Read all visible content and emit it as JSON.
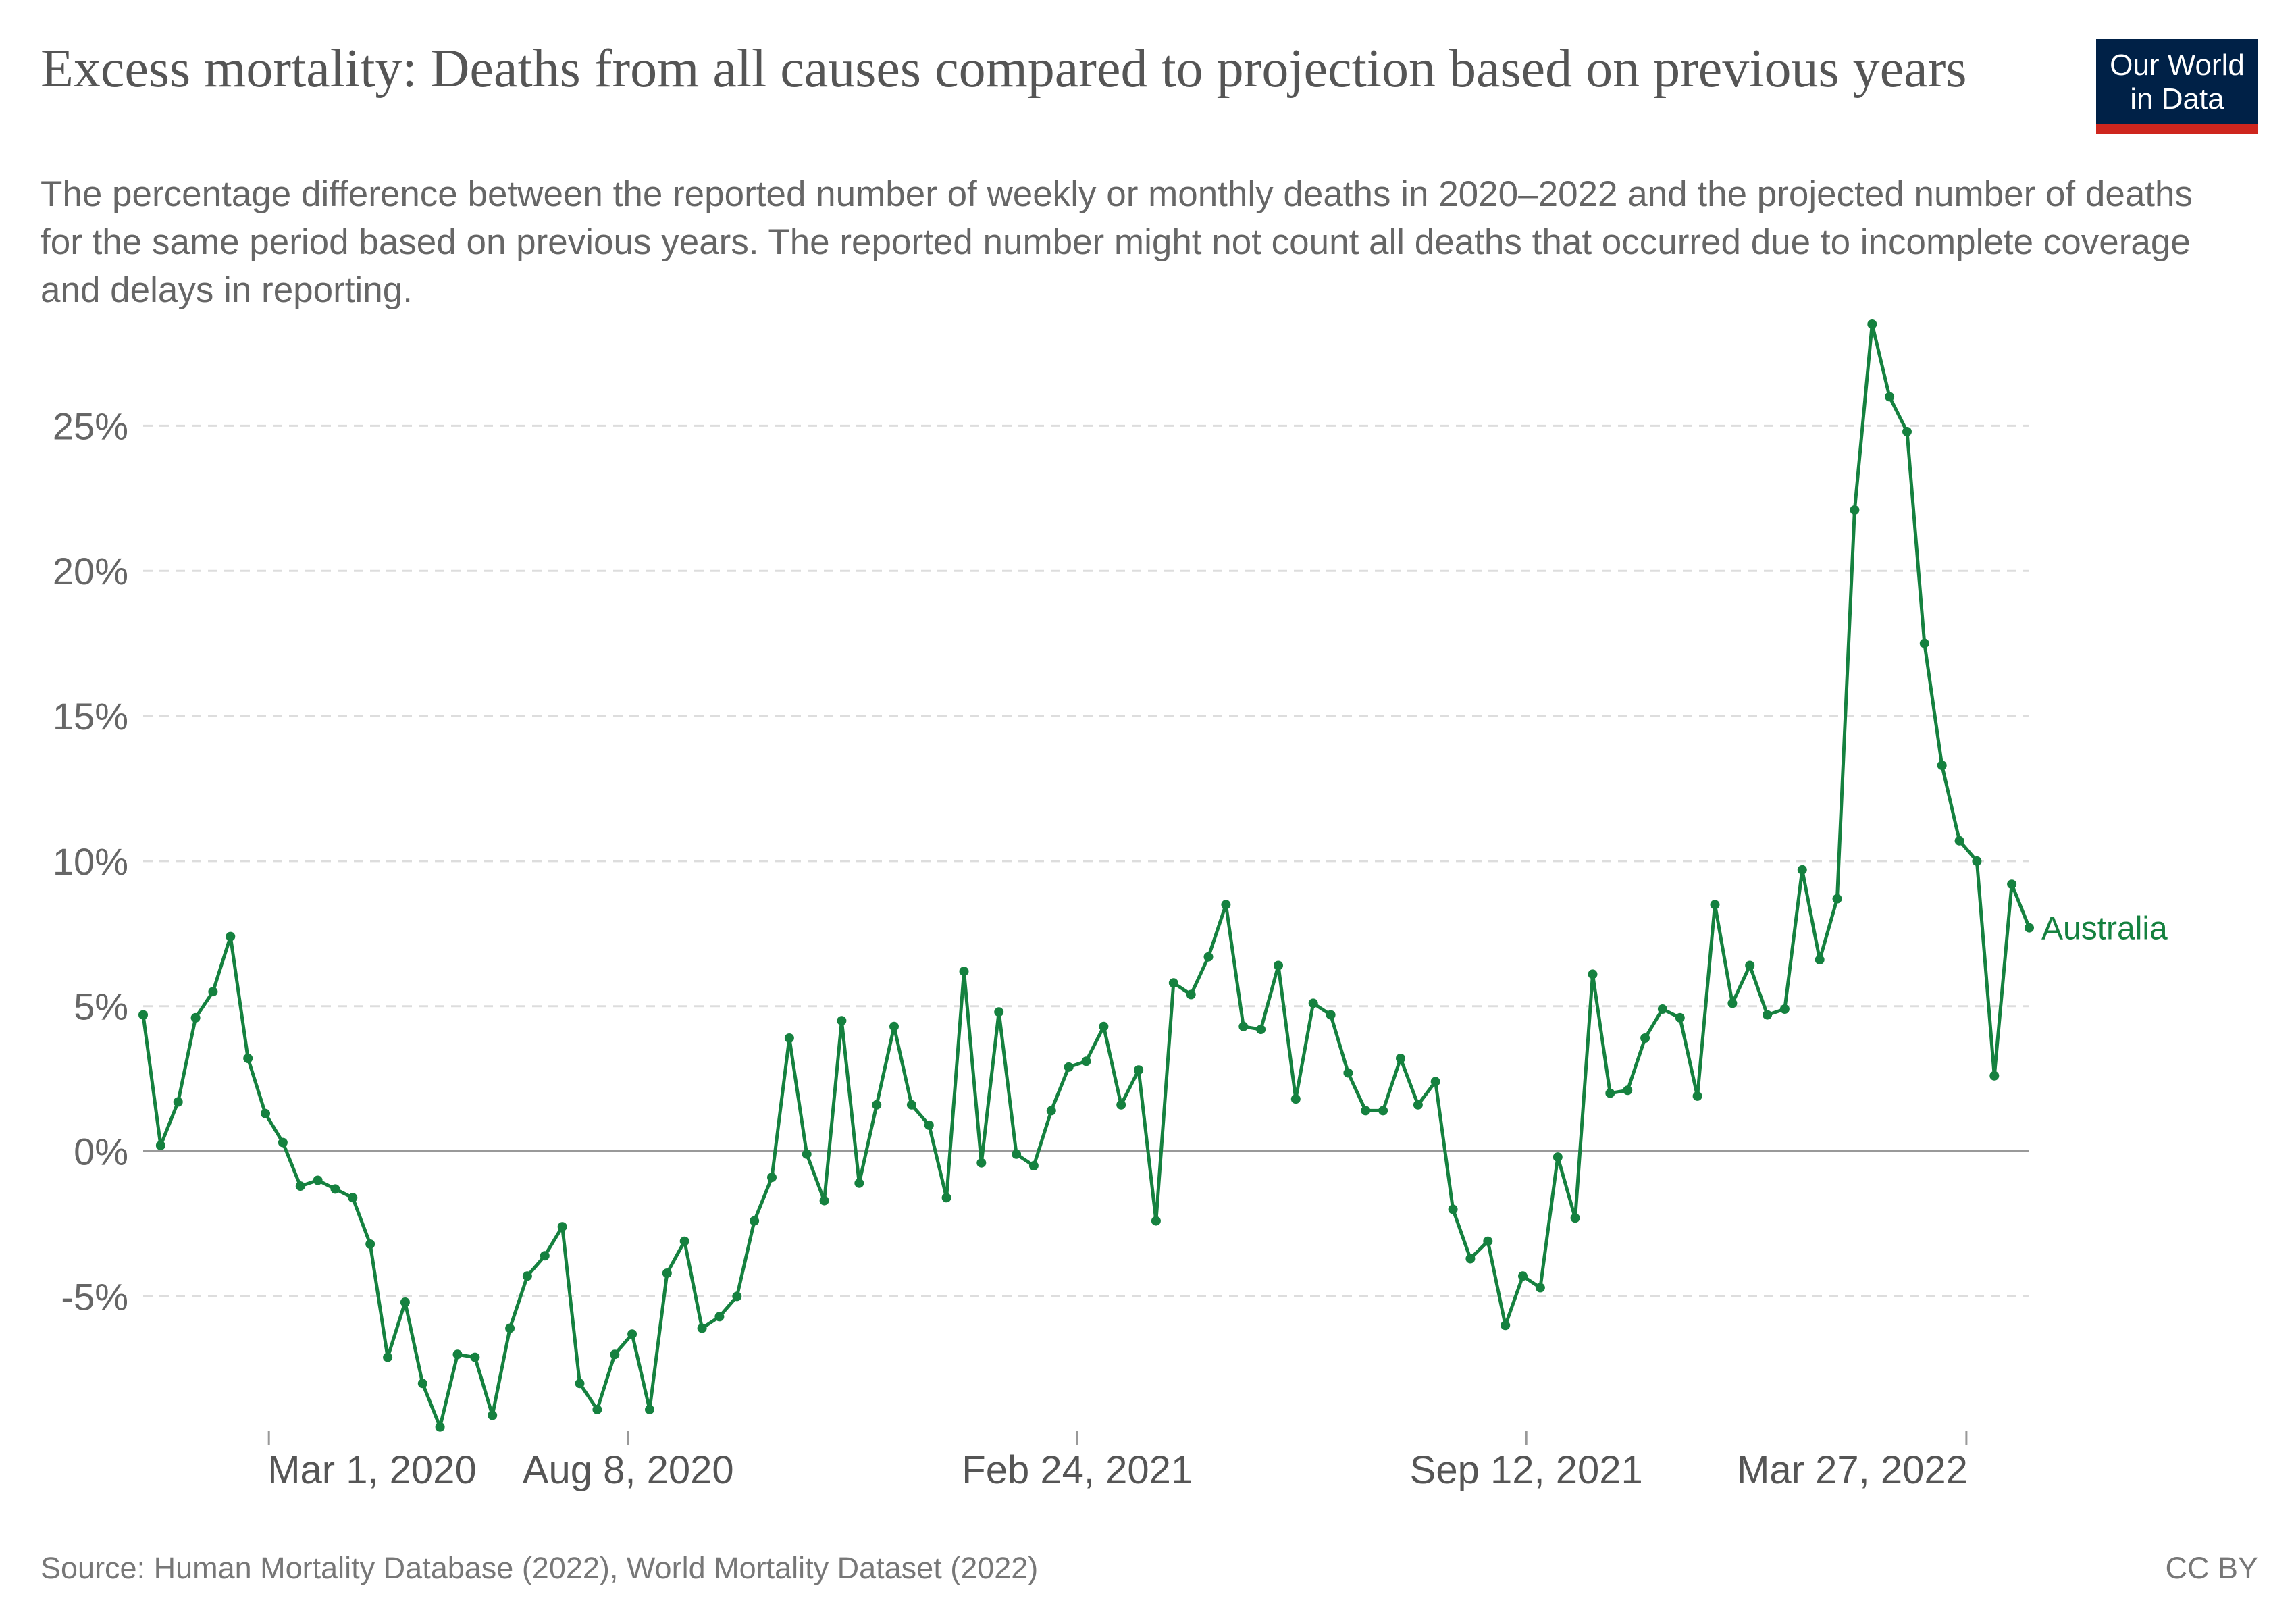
{
  "header": {
    "title": "Excess mortality: Deaths from all causes compared to projection based on previous years",
    "subtitle": "The percentage difference between the reported number of weekly or monthly deaths in 2020–2022 and the projected number of deaths for the same period based on previous years. The reported number might not count all deaths that occurred due to incomplete coverage and delays in reporting."
  },
  "logo": {
    "line1": "Our World",
    "line2": "in Data"
  },
  "footer": {
    "source": "Source: Human Mortality Database (2022), World Mortality Dataset (2022)",
    "license": "CC BY"
  },
  "colors": {
    "series": "#15813f",
    "grid": "#dddddd",
    "zero_line": "#999999",
    "logo_bg": "#002147",
    "logo_stripe": "#ce261e"
  },
  "chart_data": {
    "type": "line",
    "title": "Excess mortality: Deaths from all causes compared to projection based on previous years",
    "xlabel": "",
    "ylabel": "",
    "x_axis": {
      "type": "date",
      "ticks": [
        "Mar 1, 2020",
        "Aug 8, 2020",
        "Feb 24, 2021",
        "Sep 12, 2021",
        "Mar 27, 2022"
      ]
    },
    "y_axis": {
      "ticks": [
        -5,
        0,
        5,
        10,
        15,
        20,
        25
      ],
      "tick_labels": [
        "-5%",
        "0%",
        "5%",
        "10%",
        "15%",
        "20%",
        "25%"
      ],
      "ylim": [
        -9.6,
        28.5
      ],
      "unit": "%"
    },
    "grid": "horizontal dashed",
    "legend": "line-end label",
    "series": [
      {
        "name": "Australia",
        "x_start": "Jan 5, 2020",
        "x_end": "Apr 24, 2022",
        "frequency": "weekly",
        "values": [
          4.7,
          0.2,
          1.7,
          4.6,
          5.5,
          7.4,
          3.2,
          1.3,
          0.3,
          -1.2,
          -1.0,
          -1.3,
          -1.6,
          -3.2,
          -7.1,
          -5.2,
          -8.0,
          -9.5,
          -7.0,
          -7.1,
          -9.1,
          -6.1,
          -4.3,
          -3.6,
          -2.6,
          -8.0,
          -8.9,
          -7.0,
          -6.3,
          -8.9,
          -4.2,
          -3.1,
          -6.1,
          -5.7,
          -5.0,
          -2.4,
          -0.9,
          3.9,
          -0.1,
          -1.7,
          4.5,
          -1.1,
          1.6,
          4.3,
          1.6,
          0.9,
          -1.6,
          6.2,
          -0.4,
          4.8,
          -0.1,
          -0.5,
          1.4,
          2.9,
          3.1,
          4.3,
          1.6,
          2.8,
          -2.4,
          5.8,
          5.4,
          6.7,
          8.5,
          4.3,
          4.2,
          6.4,
          1.8,
          5.1,
          4.7,
          2.7,
          1.4,
          1.4,
          3.2,
          1.6,
          2.4,
          -2.0,
          -3.7,
          -3.1,
          -6.0,
          -4.3,
          -4.7,
          -0.2,
          -2.3,
          6.1,
          2.0,
          2.1,
          3.9,
          4.9,
          4.6,
          1.9,
          8.5,
          5.1,
          6.4,
          4.7,
          4.9,
          9.7,
          6.6,
          8.7,
          22.1,
          28.5,
          26.0,
          24.8,
          17.5,
          13.3,
          10.7,
          10.0,
          2.6,
          9.2,
          7.7
        ]
      }
    ]
  }
}
